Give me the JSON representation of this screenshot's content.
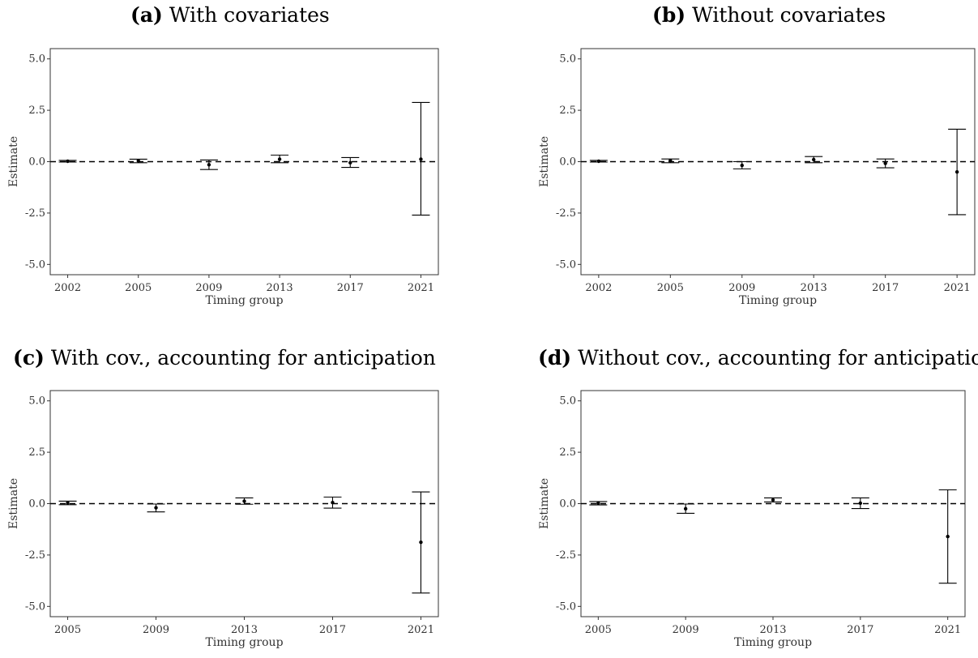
{
  "panels": [
    {
      "tag": "(a)",
      "title": "With covariates"
    },
    {
      "tag": "(b)",
      "title": "Without covariates"
    },
    {
      "tag": "(c)",
      "title": "With cov., accounting for anticipation"
    },
    {
      "tag": "(d)",
      "title": "Without cov., accounting for anticipation"
    }
  ],
  "chart_data": [
    {
      "type": "scatter",
      "title": "(a) With covariates",
      "xlabel": "Timing group",
      "ylabel": "Estimate",
      "ylim": [
        -5.5,
        5.5
      ],
      "yticks": [
        -5.0,
        -2.5,
        0.0,
        2.5,
        5.0
      ],
      "ytick_labels": [
        "-5.0",
        "-2.5",
        "0.0",
        "2.5",
        "5.0"
      ],
      "reference_line": 0,
      "categories": [
        "2002",
        "2005",
        "2009",
        "2013",
        "2017",
        "2021"
      ],
      "estimates": [
        0.02,
        0.04,
        -0.15,
        0.12,
        -0.05,
        0.12
      ],
      "ci_lower": [
        -0.02,
        -0.05,
        -0.38,
        -0.05,
        -0.28,
        -2.6
      ],
      "ci_upper": [
        0.06,
        0.12,
        0.08,
        0.32,
        0.2,
        2.88
      ]
    },
    {
      "type": "scatter",
      "title": "(b) Without covariates",
      "xlabel": "Timing group",
      "ylabel": "Estimate",
      "ylim": [
        -5.5,
        5.5
      ],
      "yticks": [
        -5.0,
        -2.5,
        0.0,
        2.5,
        5.0
      ],
      "ytick_labels": [
        "-5.0",
        "-2.5",
        "0.0",
        "2.5",
        "5.0"
      ],
      "reference_line": 0,
      "categories": [
        "2002",
        "2005",
        "2009",
        "2013",
        "2017",
        "2021"
      ],
      "estimates": [
        0.02,
        0.05,
        -0.18,
        0.1,
        -0.08,
        -0.5
      ],
      "ci_lower": [
        -0.02,
        -0.05,
        -0.35,
        -0.05,
        -0.3,
        -2.58
      ],
      "ci_upper": [
        0.06,
        0.13,
        0.0,
        0.25,
        0.13,
        1.58
      ]
    },
    {
      "type": "scatter",
      "title": "(c) With cov., accounting for anticipation",
      "xlabel": "Timing group",
      "ylabel": "Estimate",
      "ylim": [
        -5.5,
        5.5
      ],
      "yticks": [
        -5.0,
        -2.5,
        0.0,
        2.5,
        5.0
      ],
      "ytick_labels": [
        "-5.0",
        "-2.5",
        "0.0",
        "2.5",
        "5.0"
      ],
      "reference_line": 0,
      "categories": [
        "2005",
        "2009",
        "2013",
        "2017",
        "2021"
      ],
      "estimates": [
        0.03,
        -0.2,
        0.12,
        0.05,
        -1.88
      ],
      "ci_lower": [
        -0.05,
        -0.4,
        -0.03,
        -0.22,
        -4.35
      ],
      "ci_upper": [
        0.12,
        -0.02,
        0.28,
        0.32,
        0.57
      ]
    },
    {
      "type": "scatter",
      "title": "(d) Without cov., accounting for anticipation",
      "xlabel": "Timing group",
      "ylabel": "Estimate",
      "ylim": [
        -5.5,
        5.5
      ],
      "yticks": [
        -5.0,
        -2.5,
        0.0,
        2.5,
        5.0
      ],
      "ytick_labels": [
        "-5.0",
        "-2.5",
        "0.0",
        "2.5",
        "5.0"
      ],
      "reference_line": 0,
      "categories": [
        "2005",
        "2009",
        "2013",
        "2017",
        "2021"
      ],
      "estimates": [
        0.02,
        -0.25,
        0.18,
        0.02,
        -1.6
      ],
      "ci_lower": [
        -0.06,
        -0.47,
        0.08,
        -0.24,
        -3.87
      ],
      "ci_upper": [
        0.1,
        -0.02,
        0.28,
        0.28,
        0.67
      ]
    }
  ]
}
